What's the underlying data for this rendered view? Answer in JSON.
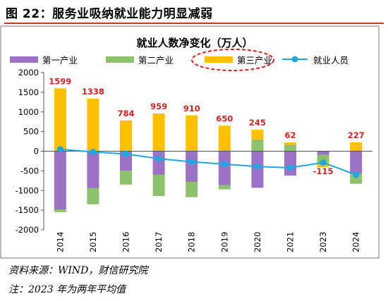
{
  "figure_title": "图 22：服务业吸纳就业能力明显减弱",
  "source": "资料来源：WIND，财信研究院",
  "note": "注：2023 年为两年平均值",
  "colors": {
    "primary": "#9b72c6",
    "secondary": "#8cc26c",
    "tertiary": "#ffc000",
    "total": "#1fa7e0",
    "label": "#e02020",
    "highlight": "#e02020",
    "title_rule": "#c0392b"
  },
  "chart_data": {
    "type": "bar",
    "stacked": true,
    "title": "就业人数净变化（万人）",
    "categories": [
      "2014",
      "2015",
      "2016",
      "2017",
      "2018",
      "2019",
      "2020",
      "2021",
      "2023",
      "2024"
    ],
    "series": [
      {
        "name": "第一产业",
        "kind": "bar",
        "color": "#9b72c6",
        "values": [
          -1480,
          -940,
          -500,
          -600,
          -780,
          -860,
          -930,
          -620,
          -90,
          -580
        ]
      },
      {
        "name": "第二产业",
        "kind": "bar",
        "color": "#8cc26c",
        "values": [
          -70,
          -410,
          -350,
          -540,
          -390,
          -110,
          300,
          160,
          -200,
          -250
        ]
      },
      {
        "name": "第三产业",
        "kind": "bar",
        "color": "#ffc000",
        "values": [
          1599,
          1338,
          784,
          959,
          910,
          650,
          245,
          62,
          -115,
          227
        ],
        "data_labels": [
          "1599",
          "1338",
          "784",
          "959",
          "910",
          "650",
          "245",
          "62",
          "-115",
          "227"
        ]
      },
      {
        "name": "就业人员",
        "kind": "line",
        "color": "#1fa7e0",
        "values": [
          50,
          -20,
          -70,
          -190,
          -270,
          -330,
          -390,
          -420,
          -290,
          -600
        ]
      }
    ],
    "y_ticks": [
      "2000",
      "1500",
      "1000",
      "500",
      "0",
      "-500",
      "-1000",
      "-1500",
      "-2000"
    ],
    "ylim": [
      -2000,
      2000
    ],
    "legend_position": "top",
    "highlighted_series": "第三产业",
    "grid": false
  }
}
